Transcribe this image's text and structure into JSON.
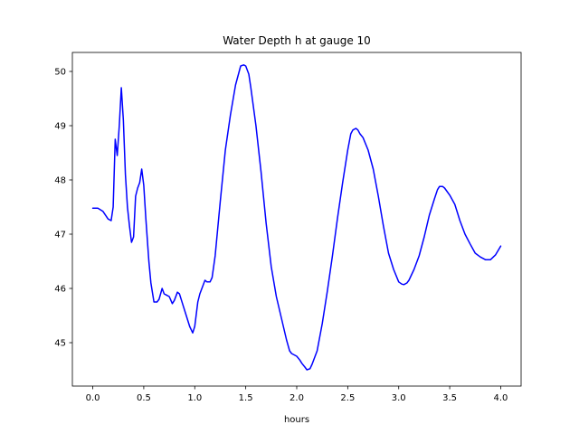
{
  "chart_data": {
    "type": "line",
    "title": "Water Depth h at gauge 10",
    "xlabel": "hours",
    "ylabel": "",
    "xlim": [
      -0.2,
      4.2
    ],
    "ylim": [
      44.2,
      50.35
    ],
    "xticks": [
      0.0,
      0.5,
      1.0,
      1.5,
      2.0,
      2.5,
      3.0,
      3.5,
      4.0
    ],
    "xtick_labels": [
      "0.0",
      "0.5",
      "1.0",
      "1.5",
      "2.0",
      "2.5",
      "3.0",
      "3.5",
      "4.0"
    ],
    "yticks": [
      45,
      46,
      47,
      48,
      49,
      50
    ],
    "ytick_labels": [
      "45",
      "46",
      "47",
      "48",
      "49",
      "50"
    ],
    "grid": false,
    "series": [
      {
        "color": "#0000ff",
        "x": [
          0.0,
          0.05,
          0.1,
          0.15,
          0.18,
          0.2,
          0.22,
          0.24,
          0.26,
          0.28,
          0.3,
          0.32,
          0.34,
          0.36,
          0.38,
          0.4,
          0.42,
          0.44,
          0.46,
          0.48,
          0.5,
          0.52,
          0.55,
          0.57,
          0.6,
          0.63,
          0.65,
          0.68,
          0.7,
          0.72,
          0.75,
          0.78,
          0.8,
          0.83,
          0.85,
          0.88,
          0.9,
          0.95,
          0.98,
          1.0,
          1.03,
          1.05,
          1.08,
          1.1,
          1.12,
          1.15,
          1.17,
          1.2,
          1.25,
          1.3,
          1.35,
          1.4,
          1.45,
          1.48,
          1.5,
          1.53,
          1.55,
          1.6,
          1.65,
          1.7,
          1.75,
          1.8,
          1.85,
          1.9,
          1.93,
          1.95,
          2.0,
          2.03,
          2.05,
          2.08,
          2.1,
          2.13,
          2.15,
          2.2,
          2.25,
          2.3,
          2.35,
          2.4,
          2.45,
          2.5,
          2.53,
          2.55,
          2.58,
          2.6,
          2.62,
          2.65,
          2.7,
          2.75,
          2.8,
          2.85,
          2.9,
          2.95,
          3.0,
          3.03,
          3.05,
          3.08,
          3.1,
          3.15,
          3.2,
          3.25,
          3.3,
          3.35,
          3.38,
          3.4,
          3.43,
          3.45,
          3.5,
          3.55,
          3.6,
          3.65,
          3.7,
          3.75,
          3.8,
          3.85,
          3.9,
          3.95,
          4.0
        ],
        "values": [
          47.48,
          47.48,
          47.42,
          47.28,
          47.25,
          47.5,
          48.75,
          48.45,
          49.0,
          49.7,
          49.1,
          48.1,
          47.5,
          47.15,
          46.85,
          46.95,
          47.7,
          47.85,
          47.95,
          48.2,
          47.9,
          47.3,
          46.5,
          46.1,
          45.75,
          45.75,
          45.8,
          46.0,
          45.9,
          45.88,
          45.85,
          45.72,
          45.78,
          45.93,
          45.9,
          45.72,
          45.6,
          45.3,
          45.18,
          45.3,
          45.75,
          45.9,
          46.05,
          46.15,
          46.12,
          46.12,
          46.2,
          46.6,
          47.6,
          48.55,
          49.2,
          49.75,
          50.1,
          50.12,
          50.1,
          49.95,
          49.7,
          49.0,
          48.15,
          47.2,
          46.4,
          45.85,
          45.45,
          45.05,
          44.85,
          44.8,
          44.75,
          44.68,
          44.62,
          44.55,
          44.5,
          44.52,
          44.6,
          44.85,
          45.35,
          45.95,
          46.6,
          47.3,
          47.95,
          48.55,
          48.85,
          48.92,
          48.95,
          48.92,
          48.85,
          48.78,
          48.55,
          48.2,
          47.7,
          47.15,
          46.65,
          46.35,
          46.12,
          46.08,
          46.07,
          46.1,
          46.15,
          46.35,
          46.6,
          46.95,
          47.35,
          47.65,
          47.82,
          47.88,
          47.88,
          47.85,
          47.72,
          47.55,
          47.25,
          47.0,
          46.82,
          46.65,
          46.58,
          46.53,
          46.53,
          46.62,
          46.78
        ]
      }
    ]
  }
}
